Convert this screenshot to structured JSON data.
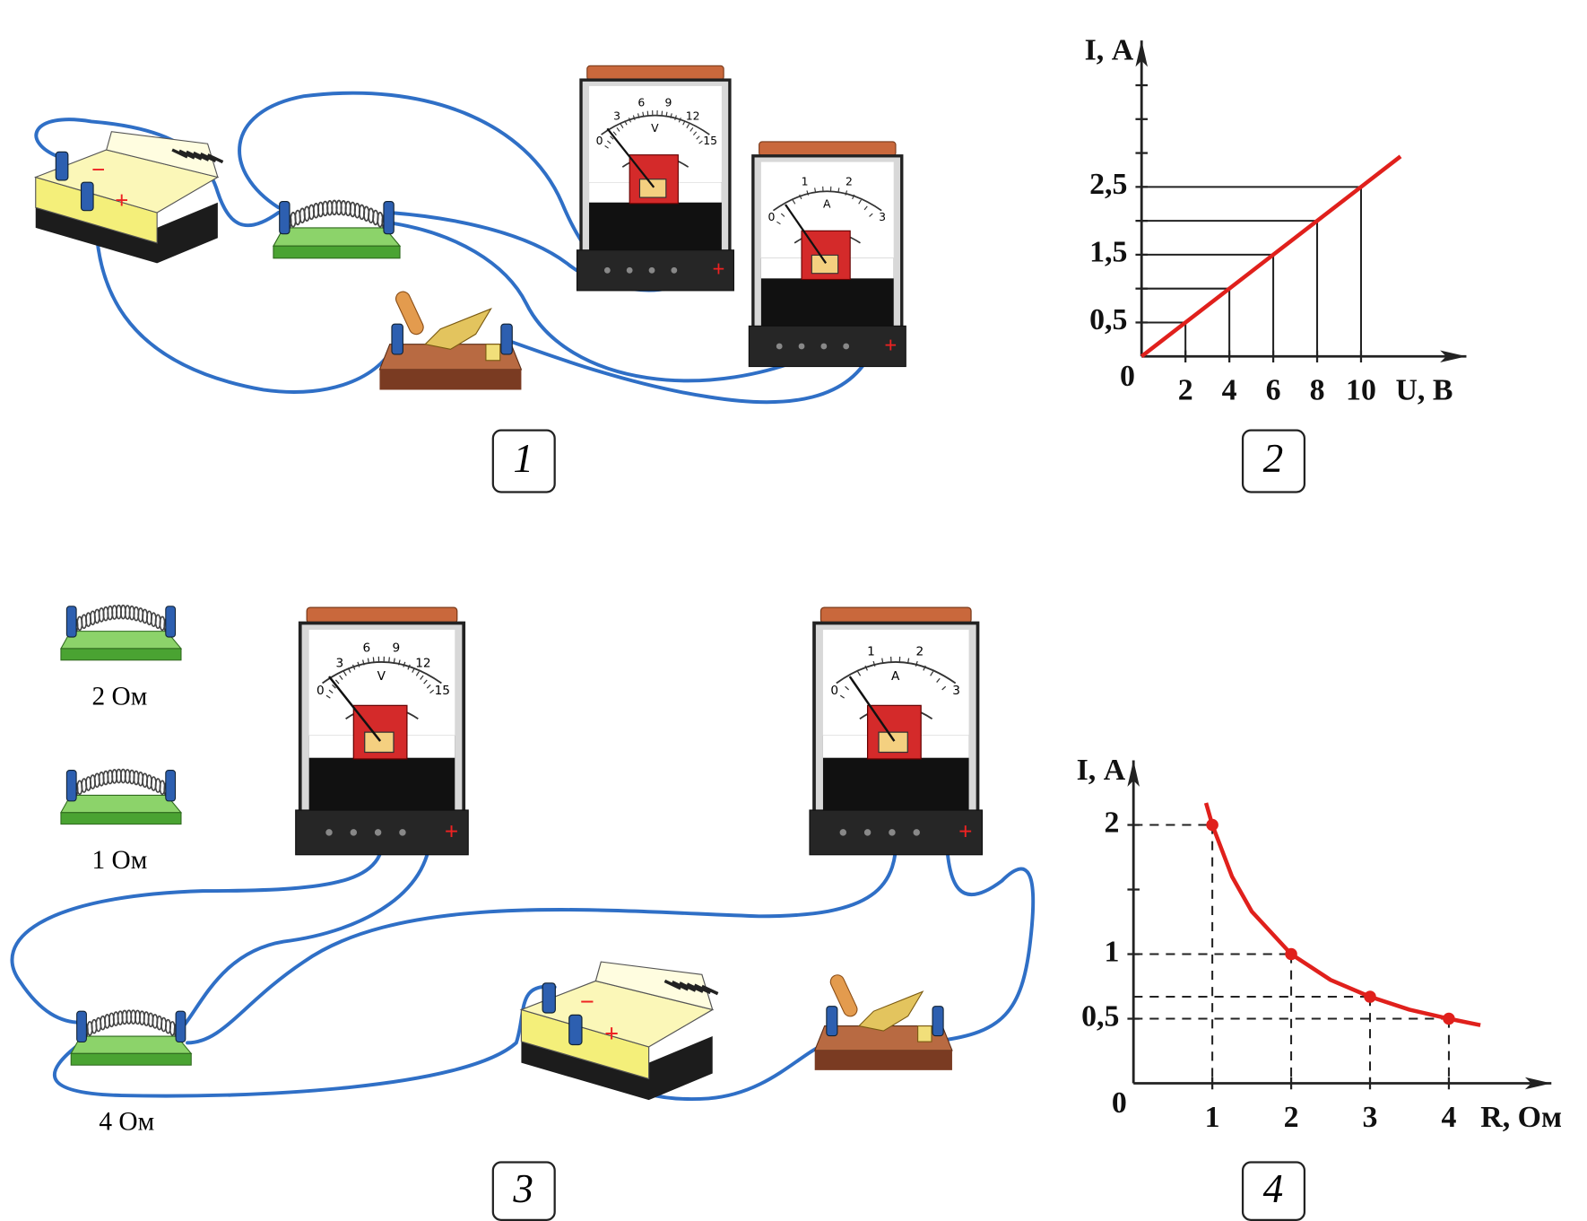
{
  "figures": [
    {
      "label": "1"
    },
    {
      "label": "2"
    },
    {
      "label": "3"
    },
    {
      "label": "4"
    }
  ],
  "devices": {
    "voltmeter_scale": [
      "0",
      "3",
      "6",
      "9",
      "12",
      "15"
    ],
    "voltmeter_unit": "V",
    "ammeter_scale": [
      "0",
      "1",
      "2",
      "3"
    ],
    "ammeter_unit": "A",
    "minus": "−",
    "plus": "+"
  },
  "resistors": [
    {
      "label": "2 Ом"
    },
    {
      "label": "1 Ом"
    },
    {
      "label": "4 Ом"
    }
  ],
  "graph_2": {
    "y_label": "I, А",
    "x_label": "U, В",
    "origin": 0,
    "xlim": [
      0,
      14.8
    ],
    "ylim": [
      0,
      4.66
    ],
    "xticks": [
      2,
      4,
      6,
      8,
      10
    ],
    "yticks": [
      {
        "value": 0.5,
        "label": "0,5"
      },
      {
        "value": 1.5,
        "label": "1,5"
      },
      {
        "value": 2.5,
        "label": "2,5"
      }
    ],
    "y_minor": [
      1,
      2,
      3,
      3.5,
      4
    ],
    "guides": {
      "x": [
        2,
        4,
        6,
        8,
        10
      ],
      "values": [
        0.5,
        1,
        1.5,
        2,
        2.5
      ]
    },
    "line": {
      "x": [
        0,
        11.8
      ],
      "values": [
        0,
        2.95
      ],
      "color": "#e0201c"
    }
  },
  "graph_4": {
    "y_label": "I, А",
    "x_label": "R, Ом",
    "origin": 0,
    "xlim": [
      0,
      5.3
    ],
    "ylim": [
      0,
      2.5
    ],
    "xticks": [
      1,
      2,
      3,
      4
    ],
    "yticks": [
      {
        "value": 0.5,
        "label": "0,5"
      },
      1,
      2
    ],
    "y_minor": [
      1.5
    ],
    "points": {
      "x": [
        1,
        2,
        3,
        4
      ],
      "values": [
        2,
        1,
        0.67,
        0.5
      ]
    },
    "curve": {
      "x": [
        0.92,
        1,
        1.25,
        1.5,
        2,
        2.5,
        3,
        3.5,
        4,
        4.4
      ],
      "values": [
        2.17,
        2,
        1.6,
        1.33,
        1,
        0.8,
        0.67,
        0.57,
        0.5,
        0.45
      ],
      "color": "#e0201c"
    }
  }
}
